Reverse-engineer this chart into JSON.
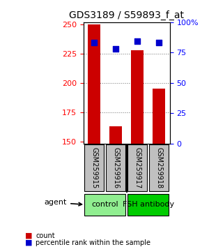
{
  "title": "GDS3189 / S59893_f_at",
  "samples": [
    "GSM259915",
    "GSM259916",
    "GSM259917",
    "GSM259918"
  ],
  "counts": [
    250,
    163,
    228,
    195
  ],
  "percentiles": [
    83,
    78,
    84,
    83
  ],
  "ylim_left": [
    148,
    252
  ],
  "ylim_right": [
    0,
    100
  ],
  "yticks_left": [
    150,
    175,
    200,
    225,
    250
  ],
  "yticks_right": [
    0,
    25,
    50,
    75,
    100
  ],
  "ytick_right_labels": [
    "0",
    "25",
    "50",
    "75",
    "100%"
  ],
  "groups": [
    {
      "label": "control",
      "indices": [
        0,
        1
      ],
      "color": "#90EE90"
    },
    {
      "label": "FSH antibody",
      "indices": [
        2,
        3
      ],
      "color": "#00CC00"
    }
  ],
  "bar_color": "#CC0000",
  "dot_color": "#0000CC",
  "bar_width": 0.6,
  "grid_color": "#808080",
  "sample_box_color": "#C0C0C0",
  "legend_items": [
    {
      "label": "count",
      "color": "#CC0000"
    },
    {
      "label": "percentile rank within the sample",
      "color": "#0000CC"
    }
  ],
  "agent_label": "agent"
}
